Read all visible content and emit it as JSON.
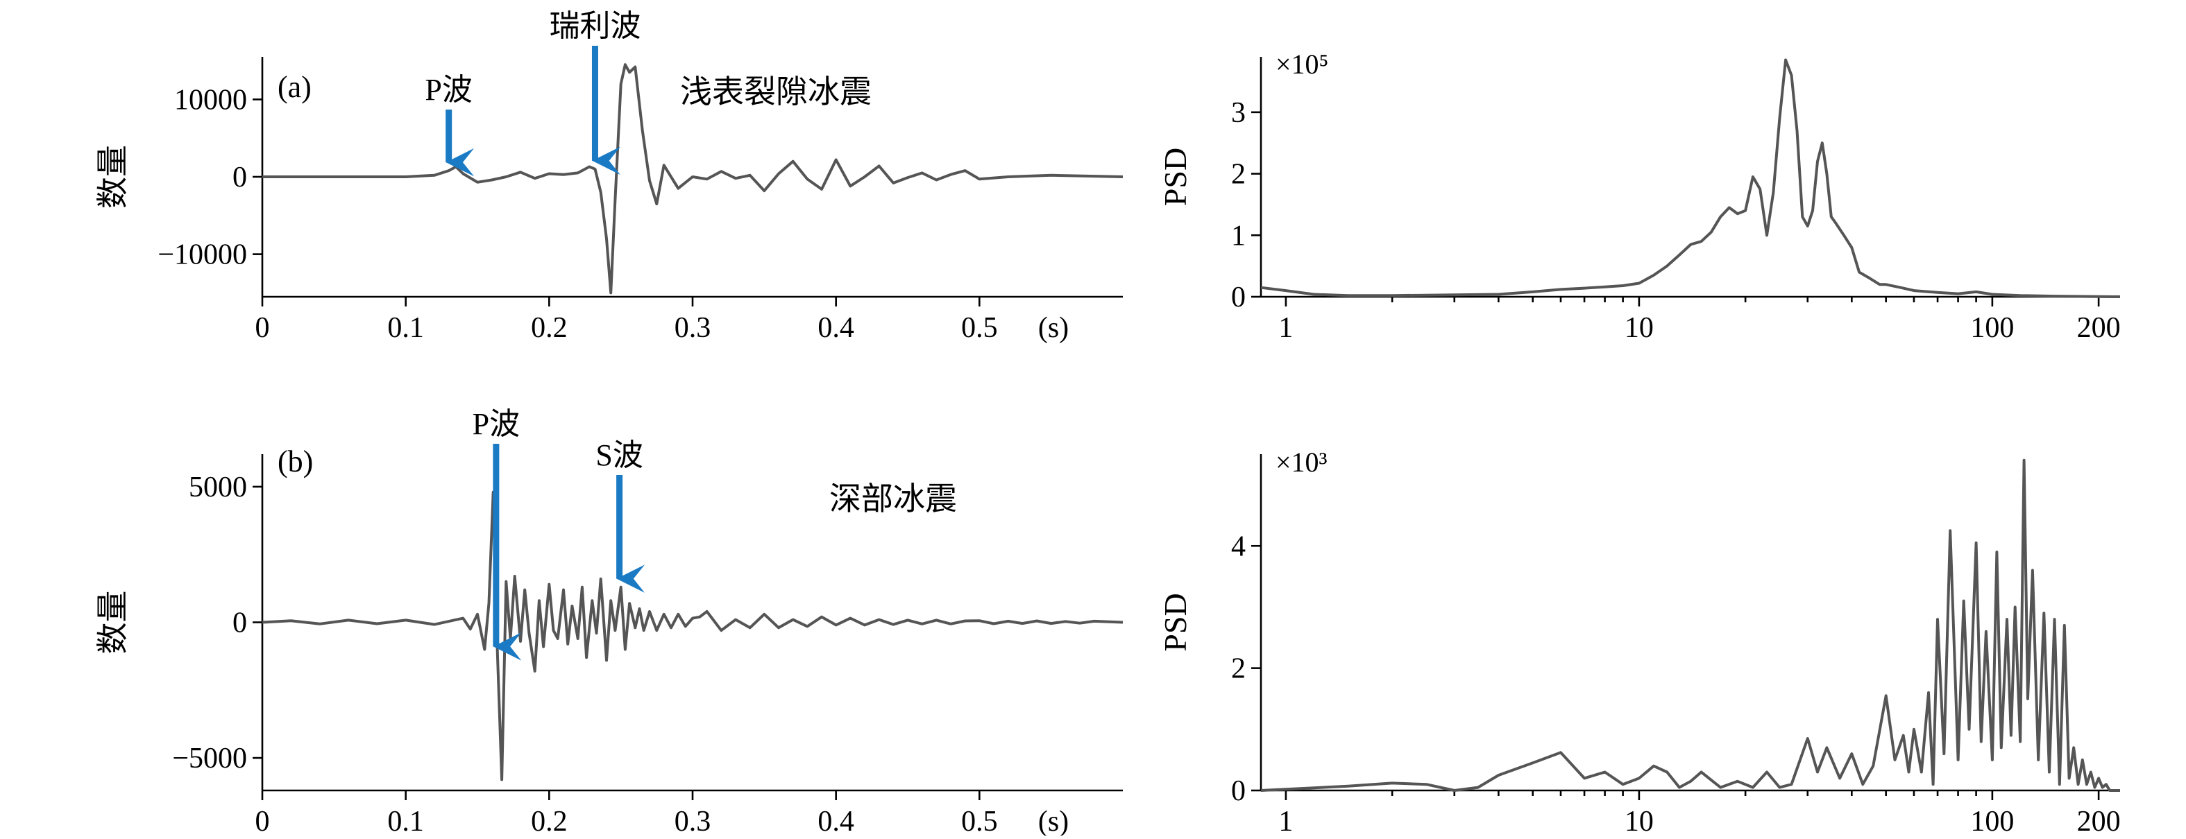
{
  "chart_data": [
    {
      "id": "a-time",
      "type": "line",
      "panel_label": "(a)",
      "ylabel": "数量",
      "x_unit": "(s)",
      "xlim": [
        0,
        0.6
      ],
      "ylim": [
        -15500,
        15500
      ],
      "x_ticks": [
        0,
        0.1,
        0.2,
        0.3,
        0.4,
        0.5
      ],
      "y_ticks": [
        10000,
        0,
        -10000
      ],
      "y_tick_labels": [
        "10000",
        "0",
        "−10000"
      ],
      "annotation": "浅表裂隙冰震",
      "arrows": [
        {
          "label": "P波",
          "x": 0.13
        },
        {
          "label": "瑞利波",
          "x": 0.232
        }
      ],
      "arrow_color": "#1a7ac4",
      "line_color": "#555555",
      "series": [
        {
          "x": [
            0,
            0.05,
            0.1,
            0.12,
            0.13,
            0.135,
            0.14,
            0.15,
            0.16,
            0.17,
            0.18,
            0.19,
            0.2,
            0.21,
            0.22,
            0.228,
            0.232,
            0.236,
            0.24,
            0.243,
            0.246,
            0.25,
            0.253,
            0.256,
            0.26,
            0.265,
            0.27,
            0.275,
            0.28,
            0.29,
            0.3,
            0.31,
            0.32,
            0.33,
            0.34,
            0.35,
            0.36,
            0.37,
            0.38,
            0.39,
            0.4,
            0.41,
            0.42,
            0.43,
            0.44,
            0.45,
            0.46,
            0.47,
            0.48,
            0.49,
            0.5,
            0.52,
            0.55,
            0.6
          ],
          "y": [
            0,
            0,
            0,
            200,
            800,
            1300,
            400,
            -700,
            -400,
            0,
            600,
            -200,
            400,
            300,
            500,
            1300,
            1000,
            -2000,
            -8000,
            -15000,
            -3000,
            12000,
            14500,
            13500,
            14200,
            6000,
            -500,
            -3500,
            1500,
            -1500,
            0,
            -300,
            700,
            -200,
            200,
            -1800,
            400,
            2000,
            -300,
            -1600,
            2200,
            -1200,
            0,
            1400,
            -800,
            -100,
            500,
            -400,
            300,
            800,
            -300,
            0,
            200,
            0
          ]
        }
      ]
    },
    {
      "id": "a-psd",
      "type": "line",
      "ylabel": "PSD",
      "scale_label": "×10⁵",
      "x_scale": "log",
      "xlim": [
        0.85,
        230
      ],
      "ylim": [
        0,
        3.9
      ],
      "x_ticks": [
        1,
        10,
        100,
        200
      ],
      "y_ticks": [
        0,
        1,
        2,
        3
      ],
      "line_color": "#555555",
      "series": [
        {
          "x": [
            0.85,
            1,
            1.2,
            1.5,
            2,
            3,
            4,
            5,
            6,
            7,
            8,
            9,
            10,
            11,
            12,
            13,
            14,
            15,
            16,
            17,
            18,
            19,
            20,
            21,
            22,
            23,
            24,
            25,
            26,
            27,
            28,
            29,
            30,
            31,
            32,
            33,
            34,
            35,
            36,
            38,
            40,
            42,
            45,
            48,
            50,
            55,
            60,
            70,
            80,
            90,
            100,
            120,
            150,
            230
          ],
          "y": [
            0.15,
            0.1,
            0.04,
            0.02,
            0.02,
            0.03,
            0.04,
            0.08,
            0.12,
            0.14,
            0.16,
            0.18,
            0.22,
            0.35,
            0.5,
            0.68,
            0.85,
            0.9,
            1.05,
            1.3,
            1.45,
            1.35,
            1.4,
            1.95,
            1.75,
            1.0,
            1.7,
            2.9,
            3.85,
            3.6,
            2.7,
            1.3,
            1.15,
            1.4,
            2.2,
            2.5,
            2.0,
            1.3,
            1.2,
            1.0,
            0.8,
            0.4,
            0.3,
            0.2,
            0.2,
            0.15,
            0.1,
            0.07,
            0.05,
            0.08,
            0.04,
            0.02,
            0.01,
            0
          ]
        }
      ]
    },
    {
      "id": "b-time",
      "type": "line",
      "panel_label": "(b)",
      "ylabel": "数量",
      "x_unit": "(s)",
      "xlim": [
        0,
        0.6
      ],
      "ylim": [
        -6200,
        6200
      ],
      "x_ticks": [
        0,
        0.1,
        0.2,
        0.3,
        0.4,
        0.5
      ],
      "y_ticks": [
        5000,
        0,
        -5000
      ],
      "y_tick_labels": [
        "5000",
        "0",
        "−5000"
      ],
      "annotation": "深部冰震",
      "arrows": [
        {
          "label": "P波",
          "x": 0.163
        },
        {
          "label": "S波",
          "x": 0.249
        }
      ],
      "arrow_color": "#1a7ac4",
      "line_color": "#555555",
      "series": [
        {
          "x": [
            0,
            0.02,
            0.04,
            0.06,
            0.08,
            0.1,
            0.12,
            0.14,
            0.145,
            0.15,
            0.155,
            0.158,
            0.161,
            0.164,
            0.167,
            0.17,
            0.173,
            0.176,
            0.18,
            0.183,
            0.186,
            0.19,
            0.193,
            0.196,
            0.2,
            0.203,
            0.206,
            0.21,
            0.213,
            0.216,
            0.22,
            0.223,
            0.226,
            0.23,
            0.233,
            0.236,
            0.24,
            0.243,
            0.246,
            0.25,
            0.253,
            0.256,
            0.26,
            0.263,
            0.266,
            0.27,
            0.275,
            0.28,
            0.285,
            0.29,
            0.295,
            0.3,
            0.305,
            0.31,
            0.32,
            0.33,
            0.34,
            0.35,
            0.36,
            0.37,
            0.38,
            0.39,
            0.4,
            0.41,
            0.42,
            0.43,
            0.44,
            0.45,
            0.46,
            0.47,
            0.48,
            0.49,
            0.5,
            0.51,
            0.52,
            0.53,
            0.54,
            0.55,
            0.56,
            0.57,
            0.58,
            0.6
          ],
          "y": [
            0,
            60,
            -60,
            80,
            -50,
            80,
            -80,
            150,
            -250,
            300,
            -1000,
            700,
            4800,
            -1200,
            -5800,
            1500,
            -600,
            1700,
            -700,
            1200,
            -400,
            -1800,
            800,
            -900,
            1400,
            -300,
            -600,
            1200,
            -800,
            600,
            -600,
            1300,
            -1300,
            800,
            -400,
            1600,
            -1400,
            800,
            -300,
            1300,
            -1000,
            700,
            -200,
            500,
            -300,
            400,
            -300,
            300,
            -200,
            300,
            -150,
            150,
            200,
            400,
            -300,
            100,
            -200,
            300,
            -200,
            100,
            -150,
            200,
            -100,
            150,
            -100,
            100,
            -80,
            80,
            -60,
            80,
            -60,
            50,
            60,
            -50,
            40,
            -40,
            50,
            -40,
            30,
            -30,
            40,
            0
          ]
        }
      ]
    },
    {
      "id": "b-psd",
      "type": "line",
      "ylabel": "PSD",
      "scale_label": "×10³",
      "x_scale": "log",
      "xlim": [
        0.85,
        230
      ],
      "ylim": [
        0,
        5.5
      ],
      "x_ticks": [
        1,
        10,
        100,
        200
      ],
      "y_ticks": [
        0,
        2,
        4
      ],
      "line_color": "#555555",
      "series": [
        {
          "x": [
            0.85,
            1,
            1.5,
            2,
            2.5,
            3,
            3.5,
            4,
            5,
            6,
            7,
            8,
            9,
            10,
            11,
            12,
            13,
            14,
            15,
            17,
            19,
            21,
            23,
            25,
            27,
            30,
            32,
            34,
            37,
            40,
            43,
            46,
            50,
            53,
            56,
            58,
            60,
            63,
            66,
            68,
            70,
            73,
            76,
            80,
            83,
            86,
            90,
            93,
            96,
            100,
            103,
            106,
            110,
            113,
            116,
            120,
            123,
            126,
            130,
            135,
            140,
            145,
            150,
            155,
            160,
            165,
            170,
            175,
            180,
            185,
            190,
            195,
            200,
            205,
            210,
            215,
            220,
            230
          ],
          "y": [
            0,
            0.02,
            0.07,
            0.12,
            0.1,
            0.0,
            0.05,
            0.25,
            0.45,
            0.62,
            0.2,
            0.3,
            0.1,
            0.2,
            0.4,
            0.3,
            0.05,
            0.15,
            0.3,
            0.05,
            0.15,
            0.05,
            0.3,
            0.05,
            0.1,
            0.85,
            0.3,
            0.7,
            0.2,
            0.6,
            0.1,
            0.4,
            1.55,
            0.5,
            0.9,
            0.3,
            1.0,
            0.3,
            1.6,
            0.1,
            2.8,
            0.6,
            4.25,
            0.5,
            3.1,
            1.0,
            4.05,
            0.8,
            2.6,
            0.5,
            3.9,
            0.7,
            2.8,
            0.9,
            3.0,
            0.8,
            5.4,
            1.5,
            3.6,
            0.5,
            2.9,
            0.3,
            2.8,
            0.1,
            2.7,
            0.2,
            0.7,
            0.1,
            0.5,
            0.1,
            0.3,
            0.05,
            0.2,
            0.05,
            0.1,
            0.0,
            0.0,
            0
          ]
        }
      ]
    }
  ]
}
